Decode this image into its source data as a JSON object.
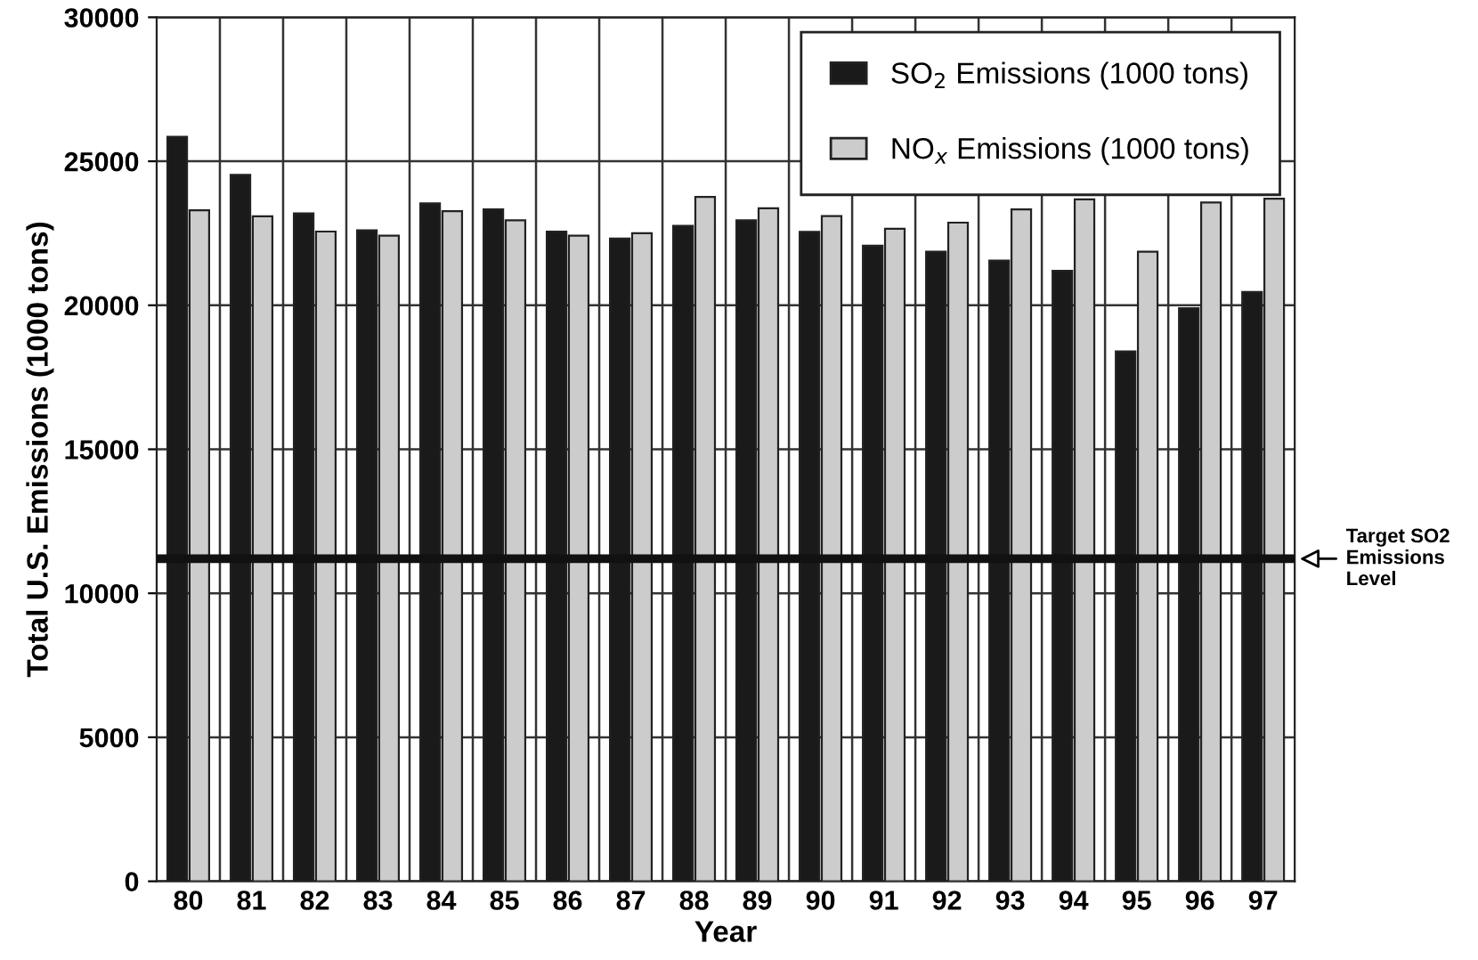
{
  "chart_data": {
    "type": "bar",
    "xlabel": "Year",
    "ylabel": "Total U.S. Emissions (1000 tons)",
    "categories": [
      "80",
      "81",
      "82",
      "83",
      "84",
      "85",
      "86",
      "87",
      "88",
      "89",
      "90",
      "91",
      "92",
      "93",
      "94",
      "95",
      "96",
      "97"
    ],
    "series": [
      {
        "name": "SO$_{2}$ Emissions (1000 tons)",
        "color": "#1a1a1a",
        "values": [
          25850,
          24530,
          23190,
          22600,
          23540,
          23330,
          22560,
          22320,
          22760,
          22950,
          22550,
          22070,
          21860,
          21550,
          21200,
          18400,
          19900,
          20460
        ]
      },
      {
        "name": "NO$_{x}$ Emissions (1000 tons)",
        "color": "#cccccc",
        "values": [
          23300,
          23090,
          22560,
          22420,
          23270,
          22950,
          22420,
          22500,
          23760,
          23370,
          23100,
          22660,
          22870,
          23330,
          23680,
          21860,
          23570,
          23700
        ]
      }
    ],
    "ylim": [
      0,
      30000
    ],
    "yticks": [
      0,
      5000,
      10000,
      15000,
      20000,
      25000,
      30000
    ],
    "grid": true,
    "legend": "top right",
    "ref_lines": [
      {
        "axis": "y",
        "value": 11200,
        "label": "Target SO2\nEmissions\nLevel",
        "color": "#111111"
      }
    ]
  }
}
